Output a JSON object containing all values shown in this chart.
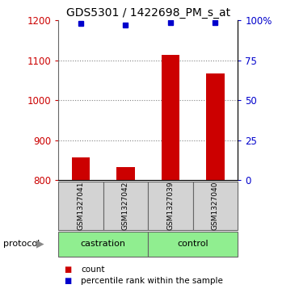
{
  "title": "GDS5301 / 1422698_PM_s_at",
  "samples": [
    "GSM1327041",
    "GSM1327042",
    "GSM1327039",
    "GSM1327040"
  ],
  "counts": [
    858,
    833,
    1113,
    1068
  ],
  "percentiles": [
    98,
    97,
    98.5,
    98.5
  ],
  "groups": [
    "castration",
    "castration",
    "control",
    "control"
  ],
  "ylim_left": [
    800,
    1200
  ],
  "ylim_right": [
    0,
    100
  ],
  "yticks_left": [
    800,
    900,
    1000,
    1100,
    1200
  ],
  "yticks_right": [
    0,
    25,
    50,
    75,
    100
  ],
  "bar_color": "#cc0000",
  "marker_color": "#0000cc",
  "bar_bottom": 800,
  "left_tick_color": "#cc0000",
  "right_tick_color": "#0000cc",
  "title_fontsize": 10,
  "sample_box_color": "#d3d3d3",
  "sample_box_edge_color": "#666666",
  "group_box_color": "#90EE90",
  "grid_color": "#000000",
  "grid_alpha": 0.5,
  "grid_yticks": [
    900,
    1000,
    1100
  ]
}
